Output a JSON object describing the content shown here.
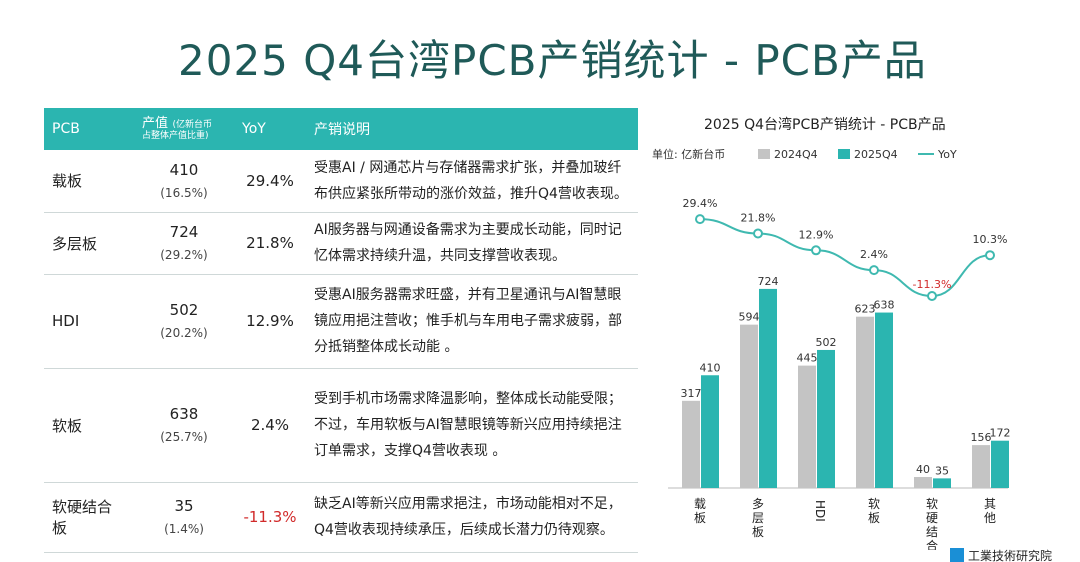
{
  "page": {
    "title": "2025 Q4台湾PCB产销统计 - PCB产品"
  },
  "table": {
    "headers": {
      "pcb": "PCB",
      "value_main": "产值",
      "value_unit": "(亿新台币",
      "value_share": "占整体产值比重)",
      "yoy": "YoY",
      "desc": "产销说明"
    },
    "rows": [
      {
        "name": "载板",
        "value": "410",
        "share": "(16.5%)",
        "yoy": "29.4%",
        "desc": "受惠AI / 网通芯片与存储器需求扩张，并叠加玻纤布供应紧张所带动的涨价效益，推升Q4营收表现。"
      },
      {
        "name": "多层板",
        "value": "724",
        "share": "(29.2%)",
        "yoy": "21.8%",
        "desc": "AI服务器与网通设备需求为主要成长动能，同时记忆体需求持续升温，共同支撑营收表现。"
      },
      {
        "name": "HDI",
        "value": "502",
        "share": "(20.2%)",
        "yoy": "12.9%",
        "desc": "受惠AI服务器需求旺盛，并有卫星通讯与AI智慧眼镜应用挹注营收；惟手机与车用电子需求疲弱，部分抵销整体成长动能 。"
      },
      {
        "name": "软板",
        "value": "638",
        "share": "(25.7%)",
        "yoy": "2.4%",
        "desc": "受到手机市场需求降温影响，整体成长动能受限；不过，车用软板与AI智慧眼镜等新兴应用持续挹注订单需求，支撑Q4营收表现 。"
      },
      {
        "name": "软硬结合板",
        "value": "35",
        "share": "(1.4%)",
        "yoy": "-11.3%",
        "desc": "缺乏AI等新兴应用需求挹注，市场动能相对不足，Q4营收表现持续承压，后续成长潜力仍待观察。"
      }
    ]
  },
  "chart_data": {
    "type": "bar",
    "title": "2025 Q4台湾PCB产销统计 - PCB产品",
    "unit_label": "单位: 亿新台币",
    "categories": [
      "载板",
      "多层板",
      "HDI",
      "软板",
      "软硬结合板",
      "其他"
    ],
    "series": [
      {
        "name": "2024Q4",
        "values": [
          317,
          594,
          445,
          623,
          40,
          156
        ],
        "color": "#c4c4c4"
      },
      {
        "name": "2025Q4",
        "values": [
          410,
          724,
          502,
          638,
          35,
          172
        ],
        "color": "#2bb5b0"
      }
    ],
    "line": {
      "name": "YoY",
      "values": [
        29.4,
        21.8,
        12.9,
        2.4,
        -11.3,
        10.3
      ],
      "labels": [
        "29.4%",
        "21.8%",
        "12.9%",
        "2.4%",
        "-11.3%",
        "10.3%"
      ],
      "color": "#3fb9b0"
    },
    "legend_position": "top-left",
    "grid": false
  },
  "footer": {
    "logo_text": "工業技術研究院"
  }
}
